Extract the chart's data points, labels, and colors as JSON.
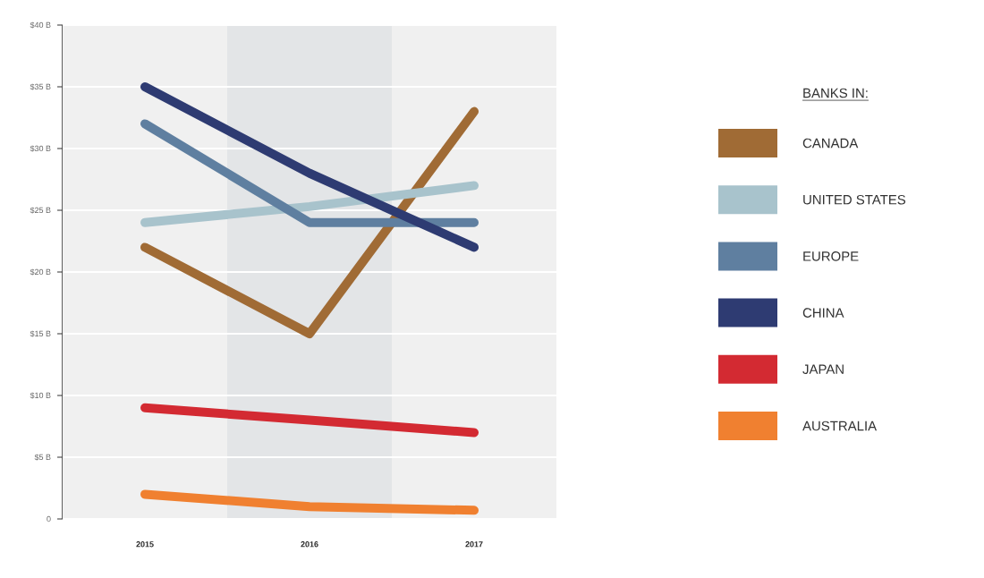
{
  "chart_data": {
    "type": "line",
    "legend_title": "BANKS IN:",
    "x": [
      2015,
      2016,
      2017
    ],
    "xlim": [
      2014.5,
      2017.5
    ],
    "xticks": [
      2015,
      2016,
      2017
    ],
    "ylim": [
      0,
      40
    ],
    "yticks": [
      0,
      {
        "value": 5,
        "label": "$5 B"
      },
      {
        "value": 10,
        "label": "$10 B"
      },
      {
        "value": 15,
        "label": "$15 B"
      },
      {
        "value": 20,
        "label": "$20 B"
      },
      {
        "value": 25,
        "label": "$25 B"
      },
      {
        "value": 30,
        "label": "$30 B"
      },
      {
        "value": 35,
        "label": "$35 B"
      },
      {
        "value": 40,
        "label": "$40 B"
      }
    ],
    "grid": "y",
    "legend": "right",
    "marker": "none",
    "line_style": "solid",
    "bands": [
      {
        "axis": "x",
        "from": 2015.5,
        "to": 2016.5,
        "color": "#e3e5e7"
      }
    ],
    "series": [
      {
        "name": "CANADA",
        "color": "#a06b35",
        "values": [
          22,
          15,
          33
        ]
      },
      {
        "name": "UNITED STATES",
        "color": "#a8c3cc",
        "values": [
          24,
          25.3,
          27
        ]
      },
      {
        "name": "EUROPE",
        "color": "#5f7fa0",
        "values": [
          32,
          24,
          24
        ]
      },
      {
        "name": "CHINA",
        "color": "#2e3b72",
        "values": [
          35,
          28,
          22
        ]
      },
      {
        "name": "JAPAN",
        "color": "#d32a32",
        "values": [
          9,
          8,
          7
        ]
      },
      {
        "name": "AUSTRALIA",
        "color": "#f08030",
        "values": [
          2,
          1,
          0.7
        ]
      }
    ]
  }
}
